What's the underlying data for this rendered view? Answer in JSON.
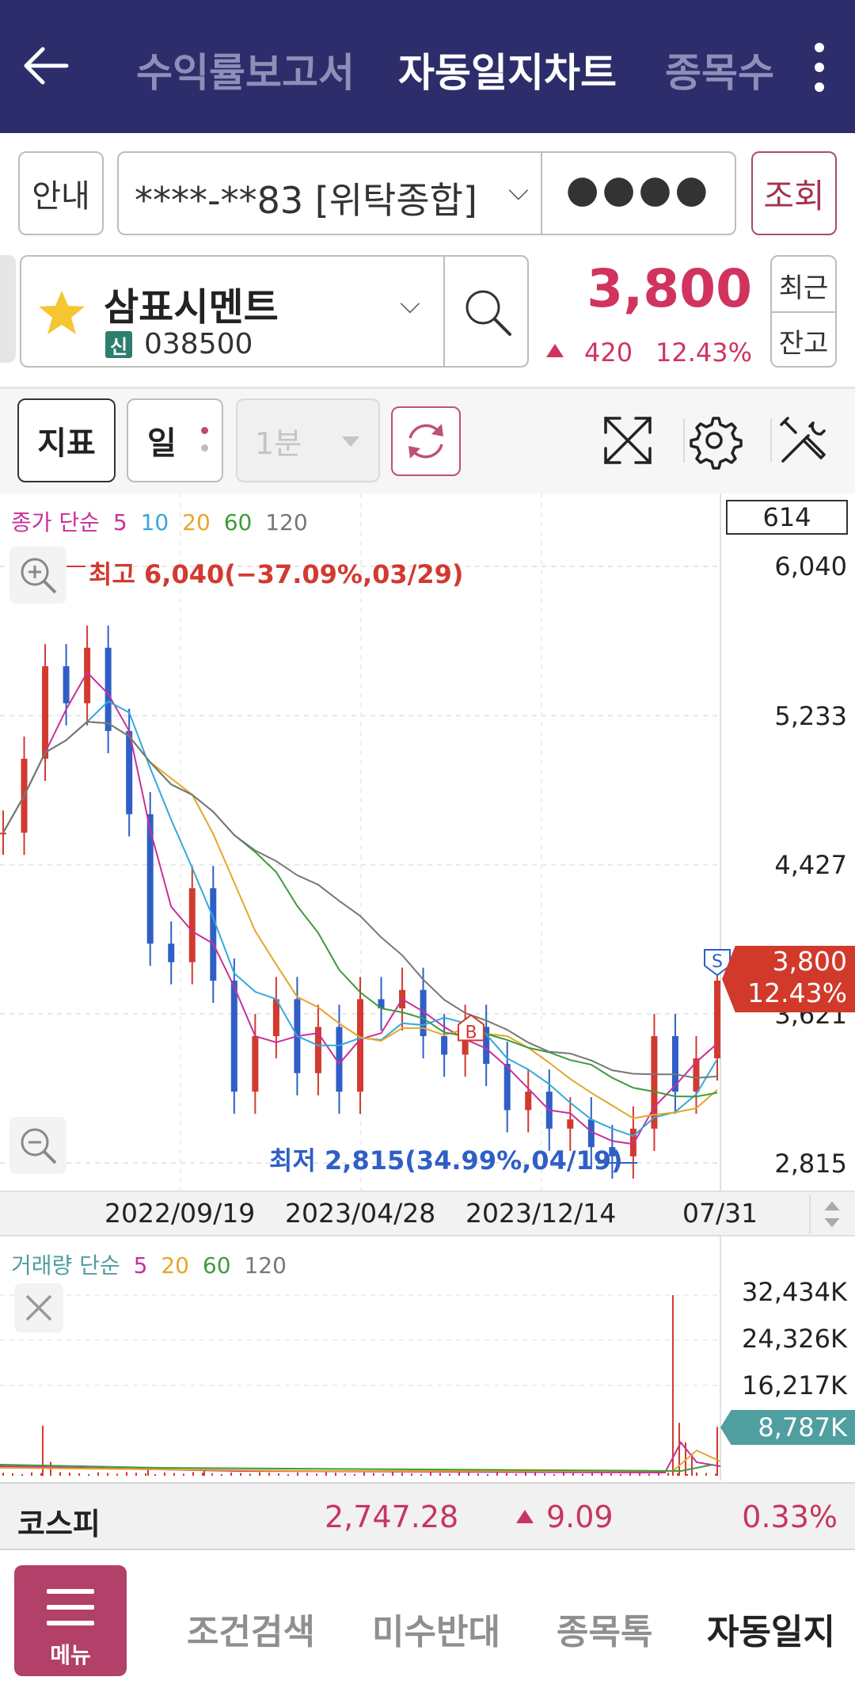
{
  "header": {
    "tabs": [
      {
        "label": "수익률보고서"
      },
      {
        "label": "자동일지차트"
      },
      {
        "label": "종목수"
      }
    ]
  },
  "account": {
    "info_label": "안내",
    "number": "****-**83 [위탁종합]",
    "password_mask": "●●●●",
    "query_label": "조회"
  },
  "stock": {
    "name": "삼표시멘트",
    "badge": "신",
    "code": "038500",
    "price": "3,800",
    "change": "420",
    "change_pct": "12.43%",
    "recent_label": "최근",
    "balance_label": "잔고"
  },
  "toolbar": {
    "indicator_label": "지표",
    "period_label": "일",
    "minute_label": "1분"
  },
  "chart": {
    "legend": {
      "prefix": "종가 단순",
      "ma": [
        {
          "label": "5",
          "color": "#c8309a"
        },
        {
          "label": "10",
          "color": "#33a9dc"
        },
        {
          "label": "20",
          "color": "#e6a62a"
        },
        {
          "label": "60",
          "color": "#3f9a3d"
        },
        {
          "label": "120",
          "color": "#777777"
        }
      ]
    },
    "count": "614",
    "y_ticks": [
      "6,040",
      "5,233",
      "4,427",
      "3,621",
      "2,815"
    ],
    "high_annotation": "최고 6,040(−37.09%,03/29)",
    "low_annotation": "최저 2,815(34.99%,04/19)",
    "price_tag": "3,800",
    "price_tag_pct": "12.43%",
    "buy_marker": "B",
    "sell_marker": "S",
    "x_ticks": [
      "2022/09/19",
      "2023/04/28",
      "2023/12/14",
      "07/31"
    ]
  },
  "volume": {
    "legend": {
      "prefix": "거래량 단순",
      "ma": [
        {
          "label": "5",
          "color": "#c8309a"
        },
        {
          "label": "20",
          "color": "#e6a62a"
        },
        {
          "label": "60",
          "color": "#3f9a3d"
        },
        {
          "label": "120",
          "color": "#777777"
        }
      ]
    },
    "y_ticks": [
      "32,434K",
      "24,326K",
      "16,217K"
    ],
    "current_tag": "8,787K"
  },
  "kospi": {
    "label": "코스피",
    "value": "2,747.28",
    "change": "9.09",
    "change_pct": "0.33%"
  },
  "bottom_nav": {
    "menu_label": "메뉴",
    "items": [
      {
        "label": "조건검색"
      },
      {
        "label": "미수반대"
      },
      {
        "label": "종목톡"
      },
      {
        "label": "자동일지"
      }
    ]
  },
  "colors": {
    "header_bg": "#2c2d6a",
    "up": "#d0345e",
    "accent": "#b24068",
    "down_line": "#2f5fc6"
  },
  "chart_data": {
    "type": "line",
    "title": "",
    "xlabel": "",
    "ylabel": "",
    "x_ticks": [
      "2022/09/19",
      "2023/04/28",
      "2023/12/14",
      "07/31"
    ],
    "ylim": [
      2815,
      6040
    ],
    "y_ticks": [
      6040,
      5233,
      4427,
      3621,
      2815
    ],
    "series": [
      {
        "name": "종가",
        "values": [
          4600,
          5000,
          5500,
          5300,
          5600,
          5150,
          4700,
          4000,
          3900,
          4300,
          3800,
          3200,
          3500,
          3700,
          3300,
          3550,
          3200,
          3700,
          3650,
          3750,
          3500,
          3400,
          3550,
          3350,
          3100,
          3200,
          3000,
          3050,
          2900,
          2850,
          3000,
          3500,
          3200,
          3380,
          3800
        ]
      }
    ],
    "high": {
      "value": 6040,
      "label": "최고 6,040(−37.09%,03/29)"
    },
    "low": {
      "value": 2815,
      "label": "최저 2,815(34.99%,04/19)"
    },
    "volume": {
      "ylim": [
        0,
        32434
      ],
      "y_ticks": [
        32434,
        24326,
        16217
      ],
      "last": 8787
    }
  }
}
